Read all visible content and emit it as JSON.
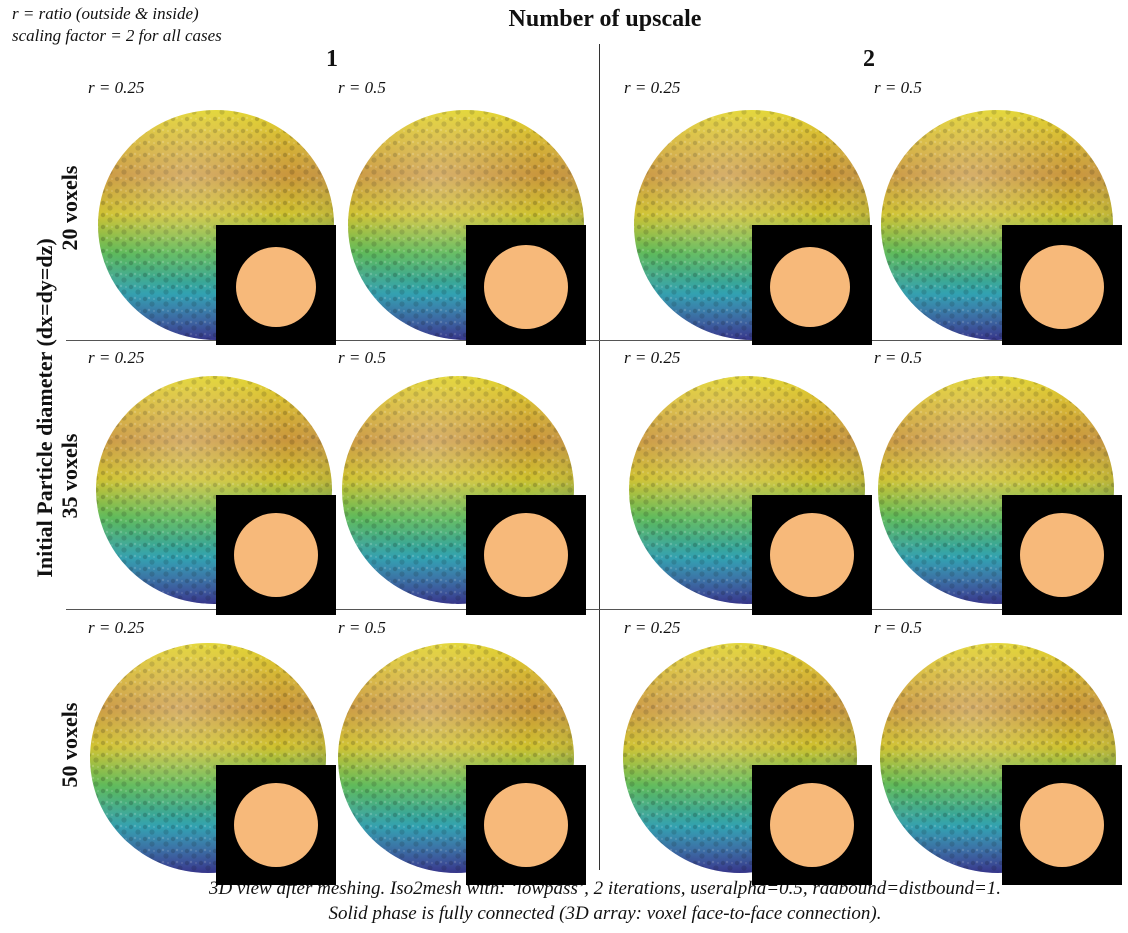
{
  "header": {
    "note_line1": "r = ratio (outside & inside)",
    "note_line2": "scaling factor = 2 for all cases",
    "title": "Number of upscale",
    "columns": [
      "1",
      "2"
    ]
  },
  "y_axis_label": "Initial Particle diameter (dx=dy=dz)",
  "rows": [
    {
      "label": "20 voxels",
      "cells": [
        "r = 0.25",
        "r = 0.5",
        "r = 0.25",
        "r = 0.5"
      ]
    },
    {
      "label": "35 voxels",
      "cells": [
        "r = 0.25",
        "r = 0.5",
        "r = 0.25",
        "r = 0.5"
      ]
    },
    {
      "label": "50 voxels",
      "cells": [
        "r = 0.25",
        "r = 0.5",
        "r = 0.25",
        "r = 0.5"
      ]
    }
  ],
  "caption": {
    "line1": "3D view after meshing. Iso2mesh with: ‘lowpass’, 2 iterations, useralpha=0.5, radbound=distbound=1.",
    "line2": "Solid phase is fully connected (3D array: voxel face-to-face connection)."
  },
  "colors": {
    "sphere_top": "#d9cc2a",
    "sphere_mid": "#c9953a",
    "sphere_low": "#2fa7a0",
    "sphere_bottom": "#3a3fa8",
    "inset_bg": "#000000",
    "inset_disk": "#f7b97a"
  }
}
